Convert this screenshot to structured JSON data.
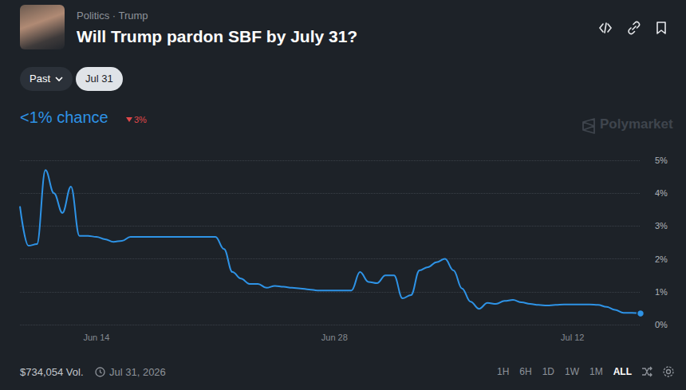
{
  "header": {
    "breadcrumb": "Politics · Trump",
    "title": "Will Trump pardon SBF by July 31?"
  },
  "controls": {
    "dropdown": "Past",
    "selected": "Jul 31"
  },
  "summary": {
    "chance": "<1% chance",
    "change": "3%"
  },
  "watermark": "Polymarket",
  "footer": {
    "volume": "$734,054 Vol.",
    "end_date": "Jul 31, 2026",
    "ranges": [
      "1H",
      "6H",
      "1D",
      "1W",
      "1M",
      "ALL"
    ],
    "selected_range": "ALL"
  },
  "chart_data": {
    "type": "line",
    "color": "#2e93e6",
    "grid": true,
    "categories": [
      null,
      null,
      null,
      null,
      null,
      null,
      null,
      null,
      null,
      "Jun 14",
      null,
      null,
      null,
      null,
      null,
      null,
      null,
      null,
      null,
      null,
      null,
      null,
      null,
      null,
      null,
      null,
      null,
      null,
      null,
      null,
      null,
      null,
      null,
      null,
      null,
      null,
      null,
      "Jun 28",
      null,
      null,
      null,
      null,
      null,
      null,
      null,
      null,
      null,
      null,
      null,
      null,
      null,
      null,
      null,
      null,
      null,
      null,
      null,
      null,
      null,
      null,
      null,
      null,
      null,
      null,
      null,
      "Jul 12",
      null,
      null,
      null,
      null,
      null,
      null,
      null,
      null
    ],
    "values": [
      3.6,
      2.4,
      2.45,
      4.7,
      4.0,
      3.4,
      4.2,
      2.7,
      2.7,
      2.67,
      2.6,
      2.52,
      2.55,
      2.67,
      2.67,
      2.67,
      2.67,
      2.67,
      2.67,
      2.67,
      2.67,
      2.67,
      2.67,
      2.67,
      2.3,
      1.6,
      1.4,
      1.24,
      1.24,
      1.12,
      1.18,
      1.15,
      1.12,
      1.1,
      1.07,
      1.04,
      1.04,
      1.04,
      1.04,
      1.04,
      1.6,
      1.3,
      1.26,
      1.5,
      1.5,
      0.8,
      0.9,
      1.65,
      1.75,
      1.9,
      2.0,
      1.65,
      1.1,
      0.7,
      0.48,
      0.66,
      0.63,
      0.72,
      0.75,
      0.68,
      0.63,
      0.6,
      0.58,
      0.6,
      0.61,
      0.61,
      0.61,
      0.61,
      0.6,
      0.54,
      0.45,
      0.36,
      0.36,
      0.34
    ],
    "ylim": [
      0,
      5
    ],
    "yticks": [
      {
        "value": 0,
        "label": "0%"
      },
      {
        "value": 1,
        "label": "1%"
      },
      {
        "value": 2,
        "label": "2%"
      },
      {
        "value": 3,
        "label": "3%"
      },
      {
        "value": 4,
        "label": "4%"
      },
      {
        "value": 5,
        "label": "5%"
      }
    ]
  }
}
